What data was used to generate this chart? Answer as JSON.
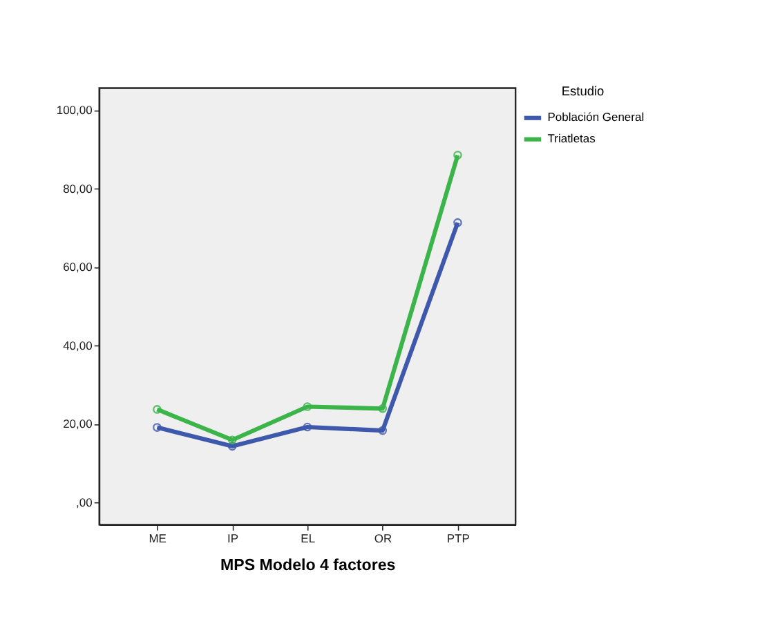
{
  "chart_data": {
    "type": "line",
    "xlabel": "MPS Modelo 4 factores",
    "legend_title": "Estudio",
    "categories": [
      "ME",
      "IP",
      "EL",
      "OR",
      "PTP"
    ],
    "series": [
      {
        "name": "Población General",
        "color": "#3e58ac",
        "values": [
          19.2,
          14.4,
          19.3,
          18.4,
          71.4
        ]
      },
      {
        "name": "Triatletas",
        "color": "#3bb44a",
        "values": [
          23.8,
          16.0,
          24.5,
          24.0,
          88.6
        ]
      }
    ],
    "ylim": [
      -5.6,
      105.7
    ],
    "yticks": [
      {
        "value": 0,
        "label": ",00"
      },
      {
        "value": 20,
        "label": "20,00"
      },
      {
        "value": 40,
        "label": "40,00"
      },
      {
        "value": 60,
        "label": "60,00"
      },
      {
        "value": 80,
        "label": "80,00"
      },
      {
        "value": 100,
        "label": "100,00"
      }
    ],
    "marker": "circle",
    "legend": "top right",
    "grid": false
  }
}
